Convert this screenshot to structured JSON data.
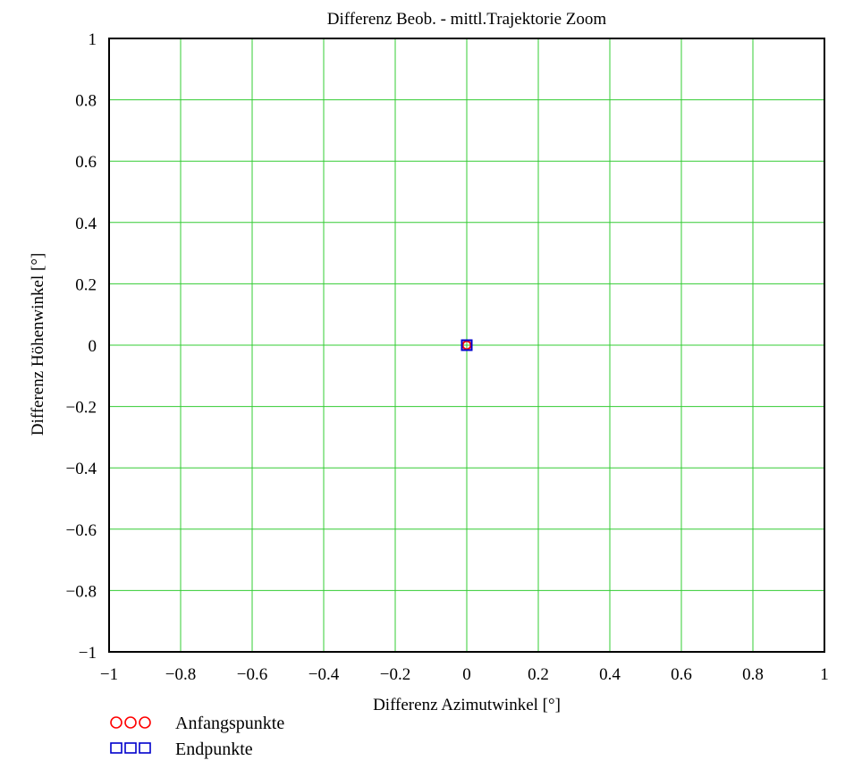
{
  "chart_data": {
    "type": "scatter",
    "title": "Differenz Beob. - mittl.Trajektorie Zoom",
    "xlabel": "Differenz Azimutwinkel [°]",
    "ylabel": "Differenz Höhenwinkel [°]",
    "xlim": [
      -1,
      1
    ],
    "ylim": [
      -1,
      1
    ],
    "grid": true,
    "grid_color": "#33cc33",
    "x_ticks": [
      -1,
      -0.8,
      -0.6,
      -0.4,
      -0.2,
      0,
      0.2,
      0.4,
      0.6,
      0.8,
      1
    ],
    "y_ticks": [
      -1,
      -0.8,
      -0.6,
      -0.4,
      -0.2,
      0,
      0.2,
      0.4,
      0.6,
      0.8,
      1
    ],
    "x_tick_labels": [
      "−1",
      "−0.8",
      "−0.6",
      "−0.4",
      "−0.2",
      "0",
      "0.2",
      "0.4",
      "0.6",
      "0.8",
      "1"
    ],
    "y_tick_labels": [
      "−1",
      "−0.8",
      "−0.6",
      "−0.4",
      "−0.2",
      "0",
      "0.2",
      "0.4",
      "0.6",
      "0.8",
      "1"
    ],
    "legend_position": "bottom-left",
    "series": [
      {
        "name": "Anfangspunkte",
        "marker": "circle",
        "color": "#ff0000",
        "points": [
          {
            "x": 0,
            "y": 0
          }
        ]
      },
      {
        "name": "Endpunkte",
        "marker": "square",
        "color": "#0000cc",
        "points": [
          {
            "x": 0,
            "y": 0
          }
        ]
      }
    ]
  }
}
